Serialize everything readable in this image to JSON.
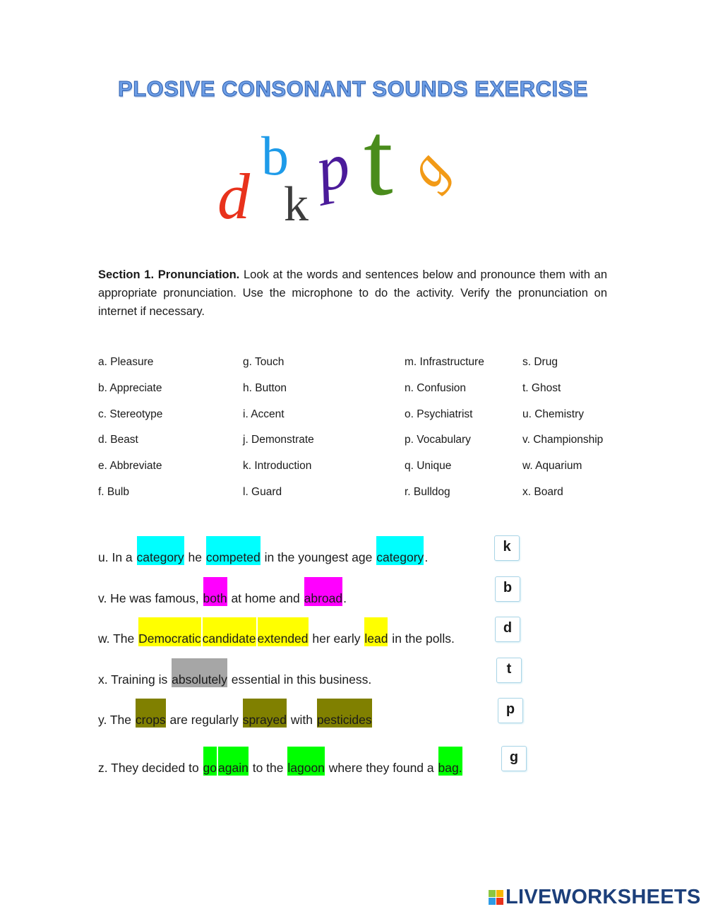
{
  "title": "PLOSIVE CONSONANT SOUNDS EXERCISE",
  "logo_letters": [
    {
      "char": "d",
      "color": "#e8321c"
    },
    {
      "char": "b",
      "color": "#1e9be9"
    },
    {
      "char": "k",
      "color": "#3d3d3d"
    },
    {
      "char": "p",
      "color": "#4b1b9a"
    },
    {
      "char": "t",
      "color": "#4a8c1c"
    },
    {
      "char": "g",
      "color": "#f29a16"
    }
  ],
  "section": {
    "heading": "Section 1. Pronunciation.",
    "instructions": "Look at the words and sentences below and pronounce them with an appropriate pronunciation. Use the microphone to do the activity. Verify the pronunciation on internet if necessary."
  },
  "word_columns": [
    [
      "a. Pleasure",
      "b. Appreciate",
      "c. Stereotype",
      "d. Beast",
      "e. Abbreviate",
      "f. Bulb"
    ],
    [
      "g. Touch",
      "h. Button",
      "i. Accent",
      "j. Demonstrate",
      "k. Introduction",
      "l. Guard"
    ],
    [
      "m. Infrastructure",
      "n. Confusion",
      "o. Psychiatrist",
      "p. Vocabulary",
      "q. Unique",
      "r. Bulldog"
    ],
    [
      "s. Drug",
      "t. Ghost",
      "u. Chemistry",
      "v. Championship",
      "w. Aquarium",
      "x. Board"
    ]
  ],
  "sentences": [
    {
      "answer": "k",
      "color": "#00ffff",
      "segments": [
        {
          "t": "u. In a "
        },
        {
          "t": "category",
          "h": 1
        },
        {
          "t": " he "
        },
        {
          "t": "competed",
          "h": 1
        },
        {
          "t": " in the youngest age "
        },
        {
          "t": "category",
          "h": 1
        },
        {
          "t": "."
        }
      ]
    },
    {
      "answer": "b",
      "color": "#ff00ff",
      "segments": [
        {
          "t": "v. He was famous, "
        },
        {
          "t": "both",
          "h": 1
        },
        {
          "t": " at home and "
        },
        {
          "t": "abroad",
          "h": 1
        },
        {
          "t": "."
        }
      ]
    },
    {
      "answer": "d",
      "color": "#ffff00",
      "segments": [
        {
          "t": "w. The "
        },
        {
          "t": "Democratic",
          "h": 1
        },
        {
          "t": "candidate",
          "h": 1
        },
        {
          "t": "extended",
          "h": 1
        },
        {
          "t": " her early "
        },
        {
          "t": "lead",
          "h": 1
        },
        {
          "t": " in the polls."
        }
      ]
    },
    {
      "answer": "t",
      "color": "#a6a6a6",
      "segments": [
        {
          "t": "x. Training is "
        },
        {
          "t": "absolutely",
          "h": 1
        },
        {
          "t": " essential in this business."
        }
      ]
    },
    {
      "answer": "p",
      "color": "#808000",
      "segments": [
        {
          "t": "y. The "
        },
        {
          "t": "crops",
          "h": 1
        },
        {
          "t": " are regularly "
        },
        {
          "t": "sprayed",
          "h": 1
        },
        {
          "t": " with "
        },
        {
          "t": "pesticides",
          "h": 1
        }
      ]
    },
    {
      "answer": "g",
      "color": "#00ff00",
      "segments": [
        {
          "t": "z. They decided to "
        },
        {
          "t": "go",
          "h": 1
        },
        {
          "t": "again",
          "h": 1
        },
        {
          "t": " to the "
        },
        {
          "t": "lagoon",
          "h": 1
        },
        {
          "t": " where they found a "
        },
        {
          "t": "bag.",
          "h": 1
        }
      ]
    }
  ],
  "footer": {
    "brand": "LIVEWORKSHEETS",
    "badge": [
      "L",
      "I",
      "V",
      "E"
    ]
  }
}
